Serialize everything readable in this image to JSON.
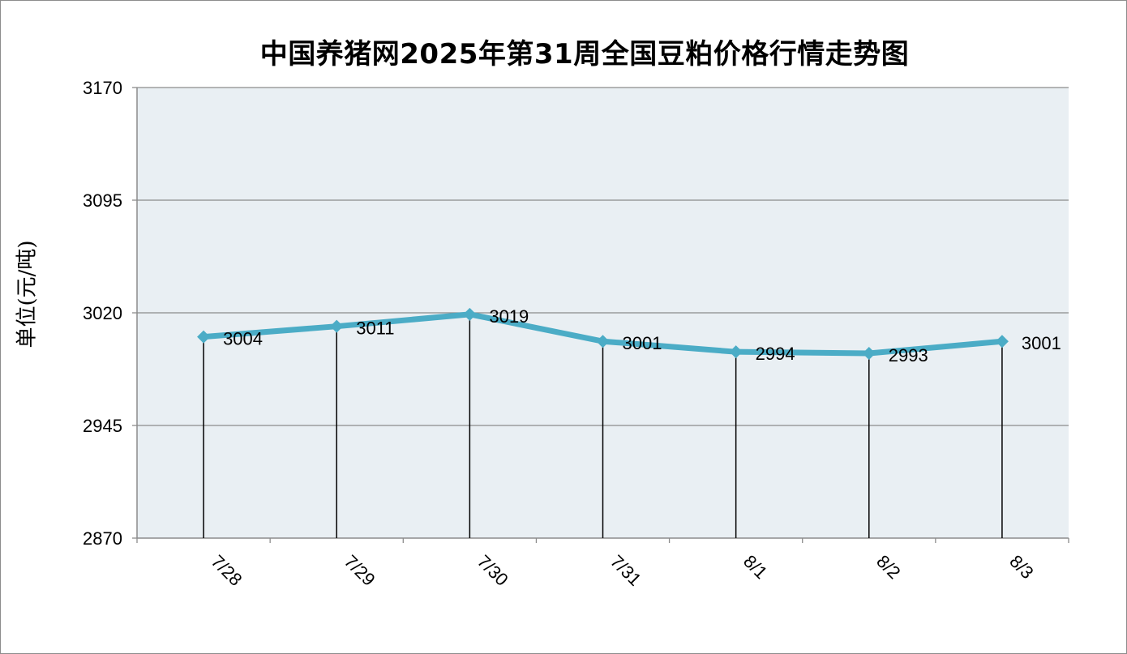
{
  "chart_data": {
    "type": "line",
    "title": "中国养猪网2025年第31周全国豆粕价格行情走势图",
    "xlabel": "",
    "ylabel": "单位(元/吨)",
    "categories": [
      "7/28",
      "7/29",
      "7/30",
      "7/31",
      "8/1",
      "8/2",
      "8/3"
    ],
    "series": [
      {
        "values": [
          3004,
          3011,
          3019,
          3001,
          2994,
          2993,
          3001
        ]
      }
    ],
    "data_labels": [
      "3004",
      "3011",
      "3019",
      "3001",
      "2994",
      "2993",
      "3001"
    ],
    "ylim": [
      2870,
      3170
    ],
    "yticks": [
      2870,
      2945,
      3020,
      3095,
      3170
    ],
    "ytick_labels": [
      "2870",
      "2945",
      "3020",
      "3095",
      "3170"
    ],
    "grid": true,
    "drop_lines": true,
    "colors": {
      "line": "#4bacc6",
      "plot_background": "#e9eff3",
      "grid": "#8c8c8c",
      "drop_line": "#000000"
    }
  }
}
